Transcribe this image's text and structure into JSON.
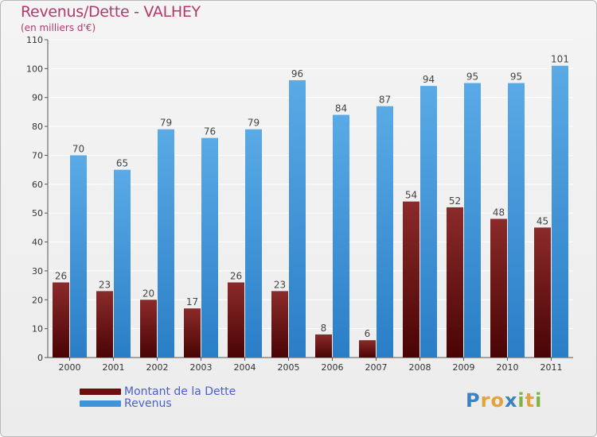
{
  "chart_data": {
    "type": "bar",
    "title": "Revenus/Dette - VALHEY",
    "subtitle": "(en milliers d'€)",
    "categories": [
      "2000",
      "2001",
      "2002",
      "2003",
      "2004",
      "2005",
      "2006",
      "2007",
      "2008",
      "2009",
      "2010",
      "2011"
    ],
    "series": [
      {
        "name": "Montant de la Dette",
        "values": [
          26,
          23,
          20,
          17,
          26,
          23,
          8,
          6,
          54,
          52,
          48,
          45
        ],
        "color": "#7a1a1a"
      },
      {
        "name": "Revenus",
        "values": [
          70,
          65,
          79,
          76,
          79,
          96,
          84,
          87,
          94,
          95,
          95,
          101
        ],
        "color": "#3f93d8"
      }
    ],
    "ylim": [
      0,
      110
    ],
    "yticks": [
      0,
      10,
      20,
      30,
      40,
      50,
      60,
      70,
      80,
      90,
      100,
      110
    ],
    "grid": true,
    "legend_position": "bottom-left"
  },
  "legend": {
    "items": [
      {
        "label": "Montant de la Dette",
        "color": "#6b0e0e"
      },
      {
        "label": "Revenus",
        "color": "#3f93d8"
      }
    ]
  },
  "logo": {
    "letters": [
      "P",
      "r",
      "o",
      "x",
      "i",
      "t",
      "i"
    ],
    "colors": [
      "#3b82c4",
      "#e2a33a",
      "#e2a33a",
      "#3b82c4",
      "#7cb342",
      "#e2a33a",
      "#7cb342"
    ]
  }
}
